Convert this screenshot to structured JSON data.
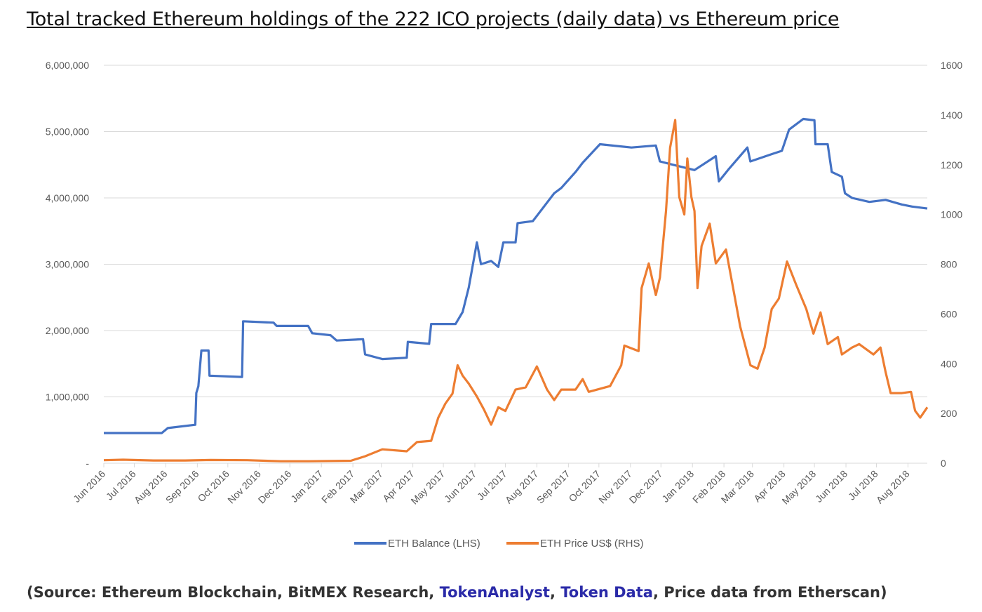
{
  "title": "Total tracked Ethereum holdings of the 222 ICO projects (daily data) vs Ethereum price",
  "source": {
    "prefix": "(Source: Ethereum Blockchain, BitMEX Research, ",
    "link1": "TokenAnalyst",
    "sep": ", ",
    "link2": "Token Data",
    "suffix": ", Price data from Etherscan)",
    "link_color": "#2a2aa8"
  },
  "chart_data": {
    "type": "line",
    "title": "",
    "xlabel": "",
    "ylabel_left": "",
    "ylabel_right": "",
    "grid": true,
    "legend_placement": "bottom",
    "xlim": [
      "2016-06-01",
      "2018-08-20"
    ],
    "x_tick_labels": [
      "Jun 2016",
      "Jul 2016",
      "Aug 2016",
      "Sep 2016",
      "Oct 2016",
      "Nov 2016",
      "Dec 2016",
      "Jan 2017",
      "Feb 2017",
      "Mar 2017",
      "Apr 2017",
      "May 2017",
      "Jun 2017",
      "Jul 2017",
      "Aug 2017",
      "Sep 2017",
      "Oct 2017",
      "Nov 2017",
      "Dec 2017",
      "Jan 2018",
      "Feb 2018",
      "Mar 2018",
      "Apr 2018",
      "May 2018",
      "Jun 2018",
      "Jul 2018",
      "Aug 2018"
    ],
    "y_left": {
      "ylim": [
        0,
        6000000
      ],
      "tick_labels": [
        "-",
        "1,000,000",
        "2,000,000",
        "3,000,000",
        "4,000,000",
        "5,000,000",
        "6,000,000"
      ]
    },
    "y_right": {
      "ylim": [
        0,
        1600
      ],
      "tick_labels": [
        "0",
        "200",
        "400",
        "600",
        "800",
        "1000",
        "1200",
        "1400",
        "1600"
      ]
    },
    "series": [
      {
        "name": "ETH Balance (LHS)",
        "axis": "left",
        "color": "#4472c4",
        "points": [
          [
            "2016-06-01",
            455000
          ],
          [
            "2016-07-28",
            455000
          ],
          [
            "2016-08-03",
            530000
          ],
          [
            "2016-08-30",
            580000
          ],
          [
            "2016-08-31",
            1060000
          ],
          [
            "2016-09-02",
            1160000
          ],
          [
            "2016-09-05",
            1700000
          ],
          [
            "2016-09-12",
            1700000
          ],
          [
            "2016-09-13",
            1320000
          ],
          [
            "2016-10-15",
            1300000
          ],
          [
            "2016-10-16",
            2140000
          ],
          [
            "2016-11-15",
            2120000
          ],
          [
            "2016-11-18",
            2070000
          ],
          [
            "2016-12-19",
            2070000
          ],
          [
            "2016-12-23",
            1960000
          ],
          [
            "2017-01-10",
            1930000
          ],
          [
            "2017-01-16",
            1850000
          ],
          [
            "2017-02-11",
            1870000
          ],
          [
            "2017-02-13",
            1640000
          ],
          [
            "2017-03-02",
            1570000
          ],
          [
            "2017-03-26",
            1590000
          ],
          [
            "2017-03-27",
            1830000
          ],
          [
            "2017-04-17",
            1800000
          ],
          [
            "2017-04-19",
            2100000
          ],
          [
            "2017-05-13",
            2100000
          ],
          [
            "2017-05-20",
            2280000
          ],
          [
            "2017-05-26",
            2650000
          ],
          [
            "2017-06-03",
            3330000
          ],
          [
            "2017-06-07",
            3000000
          ],
          [
            "2017-06-17",
            3050000
          ],
          [
            "2017-06-24",
            2960000
          ],
          [
            "2017-06-29",
            3330000
          ],
          [
            "2017-07-11",
            3330000
          ],
          [
            "2017-07-13",
            3620000
          ],
          [
            "2017-07-28",
            3650000
          ],
          [
            "2017-08-18",
            4070000
          ],
          [
            "2017-08-25",
            4150000
          ],
          [
            "2017-09-08",
            4390000
          ],
          [
            "2017-09-15",
            4530000
          ],
          [
            "2017-10-02",
            4810000
          ],
          [
            "2017-11-02",
            4760000
          ],
          [
            "2017-11-26",
            4790000
          ],
          [
            "2017-11-30",
            4550000
          ],
          [
            "2017-12-13",
            4500000
          ],
          [
            "2018-01-03",
            4420000
          ],
          [
            "2018-01-24",
            4630000
          ],
          [
            "2018-01-27",
            4250000
          ],
          [
            "2018-02-06",
            4440000
          ],
          [
            "2018-02-24",
            4760000
          ],
          [
            "2018-02-27",
            4550000
          ],
          [
            "2018-03-20",
            4660000
          ],
          [
            "2018-03-30",
            4710000
          ],
          [
            "2018-04-06",
            5030000
          ],
          [
            "2018-04-20",
            5190000
          ],
          [
            "2018-05-01",
            5170000
          ],
          [
            "2018-05-02",
            4810000
          ],
          [
            "2018-05-14",
            4810000
          ],
          [
            "2018-05-18",
            4390000
          ],
          [
            "2018-05-28",
            4320000
          ],
          [
            "2018-05-31",
            4070000
          ],
          [
            "2018-06-07",
            4000000
          ],
          [
            "2018-06-24",
            3940000
          ],
          [
            "2018-07-10",
            3970000
          ],
          [
            "2018-07-26",
            3900000
          ],
          [
            "2018-08-05",
            3870000
          ],
          [
            "2018-08-20",
            3840000
          ]
        ]
      },
      {
        "name": "ETH Price US$ (RHS)",
        "axis": "right",
        "color": "#ed7d31",
        "points": [
          [
            "2016-06-01",
            12
          ],
          [
            "2016-06-20",
            14
          ],
          [
            "2016-07-20",
            11
          ],
          [
            "2016-08-20",
            11
          ],
          [
            "2016-09-14",
            13
          ],
          [
            "2016-10-20",
            12
          ],
          [
            "2016-11-22",
            8
          ],
          [
            "2016-12-20",
            8
          ],
          [
            "2017-01-30",
            10
          ],
          [
            "2017-02-13",
            28
          ],
          [
            "2017-03-02",
            56
          ],
          [
            "2017-03-26",
            48
          ],
          [
            "2017-04-05",
            85
          ],
          [
            "2017-04-19",
            90
          ],
          [
            "2017-04-26",
            183
          ],
          [
            "2017-05-03",
            240
          ],
          [
            "2017-05-10",
            280
          ],
          [
            "2017-05-15",
            394
          ],
          [
            "2017-05-20",
            352
          ],
          [
            "2017-05-26",
            320
          ],
          [
            "2017-06-03",
            268
          ],
          [
            "2017-06-10",
            215
          ],
          [
            "2017-06-17",
            155
          ],
          [
            "2017-06-24",
            225
          ],
          [
            "2017-07-01",
            210
          ],
          [
            "2017-07-11",
            296
          ],
          [
            "2017-07-21",
            305
          ],
          [
            "2017-08-01",
            389
          ],
          [
            "2017-08-11",
            296
          ],
          [
            "2017-08-18",
            254
          ],
          [
            "2017-08-25",
            296
          ],
          [
            "2017-09-08",
            296
          ],
          [
            "2017-09-15",
            338
          ],
          [
            "2017-09-21",
            287
          ],
          [
            "2017-10-12",
            310
          ],
          [
            "2017-10-23",
            394
          ],
          [
            "2017-10-26",
            473
          ],
          [
            "2017-11-09",
            451
          ],
          [
            "2017-11-12",
            704
          ],
          [
            "2017-11-19",
            803
          ],
          [
            "2017-11-26",
            676
          ],
          [
            "2017-11-30",
            746
          ],
          [
            "2017-12-06",
            1014
          ],
          [
            "2017-12-10",
            1268
          ],
          [
            "2017-12-15",
            1380
          ],
          [
            "2017-12-19",
            1070
          ],
          [
            "2017-12-24",
            1000
          ],
          [
            "2017-12-27",
            1225
          ],
          [
            "2017-12-31",
            1070
          ],
          [
            "2018-01-03",
            1014
          ],
          [
            "2018-01-06",
            704
          ],
          [
            "2018-01-10",
            873
          ],
          [
            "2018-01-18",
            963
          ],
          [
            "2018-01-24",
            803
          ],
          [
            "2018-02-03",
            859
          ],
          [
            "2018-02-10",
            704
          ],
          [
            "2018-02-17",
            549
          ],
          [
            "2018-02-27",
            394
          ],
          [
            "2018-03-06",
            380
          ],
          [
            "2018-03-13",
            465
          ],
          [
            "2018-03-20",
            620
          ],
          [
            "2018-03-27",
            662
          ],
          [
            "2018-04-04",
            811
          ],
          [
            "2018-04-13",
            718
          ],
          [
            "2018-04-23",
            620
          ],
          [
            "2018-04-30",
            521
          ],
          [
            "2018-05-07",
            606
          ],
          [
            "2018-05-14",
            479
          ],
          [
            "2018-05-24",
            507
          ],
          [
            "2018-05-28",
            437
          ],
          [
            "2018-06-07",
            465
          ],
          [
            "2018-06-14",
            479
          ],
          [
            "2018-06-28",
            437
          ],
          [
            "2018-07-05",
            465
          ],
          [
            "2018-07-10",
            366
          ],
          [
            "2018-07-15",
            282
          ],
          [
            "2018-07-26",
            282
          ],
          [
            "2018-08-04",
            287
          ],
          [
            "2018-08-08",
            211
          ],
          [
            "2018-08-13",
            183
          ],
          [
            "2018-08-20",
            225
          ]
        ]
      }
    ]
  }
}
